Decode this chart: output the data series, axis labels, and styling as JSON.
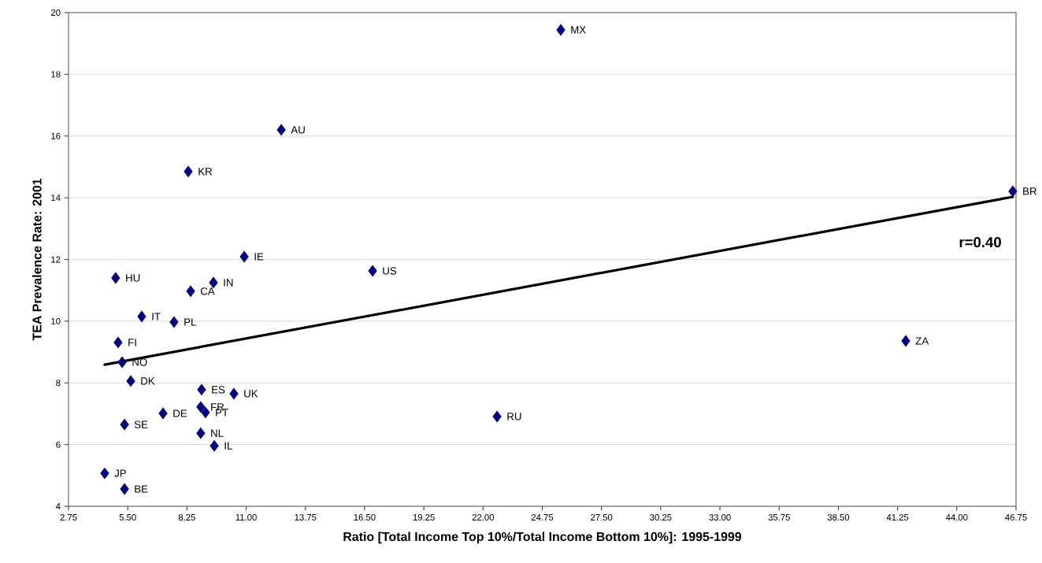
{
  "chart_data": {
    "type": "scatter",
    "xlabel": "Ratio [Total Income Top 10%/Total Income Bottom 10%]: 1995-1999",
    "ylabel": "TEA Prevalence Rate: 2001",
    "series": [
      {
        "marker": "diamond",
        "color": "#000080",
        "x": [
          25.61,
          12.63,
          8.31,
          46.6,
          10.91,
          16.87,
          4.94,
          9.48,
          8.42,
          6.15,
          7.65,
          5.05,
          41.63,
          5.24,
          5.64,
          8.93,
          10.43,
          8.89,
          9.11,
          7.14,
          22.65,
          5.35,
          8.89,
          9.52,
          4.43,
          5.35
        ],
        "values": [
          19.44,
          16.2,
          14.85,
          14.21,
          12.09,
          11.63,
          11.4,
          11.25,
          10.97,
          10.15,
          9.97,
          9.31,
          9.36,
          8.67,
          8.06,
          7.78,
          7.65,
          7.22,
          7.04,
          7.01,
          6.91,
          6.65,
          6.37,
          5.96,
          5.07,
          4.56
        ]
      },
      {
        "type": "line",
        "marker": "none",
        "color": "#000000",
        "x": [
          4.43,
          46.6
        ],
        "values": [
          8.59,
          14.03
        ]
      }
    ],
    "annotations": [
      {
        "text": "MX",
        "x": 25.61,
        "y": 19.44
      },
      {
        "text": "AU",
        "x": 12.63,
        "y": 16.2
      },
      {
        "text": "KR",
        "x": 8.31,
        "y": 14.85
      },
      {
        "text": "BR",
        "x": 46.6,
        "y": 14.21
      },
      {
        "text": "IE",
        "x": 10.91,
        "y": 12.09
      },
      {
        "text": "US",
        "x": 16.87,
        "y": 11.63
      },
      {
        "text": "HU",
        "x": 4.94,
        "y": 11.4
      },
      {
        "text": "IN",
        "x": 9.48,
        "y": 11.25
      },
      {
        "text": "CA",
        "x": 8.42,
        "y": 10.97
      },
      {
        "text": "IT",
        "x": 6.15,
        "y": 10.15
      },
      {
        "text": "PL",
        "x": 7.65,
        "y": 9.97
      },
      {
        "text": "FI",
        "x": 5.05,
        "y": 9.31
      },
      {
        "text": "ZA",
        "x": 41.63,
        "y": 9.36
      },
      {
        "text": "NO",
        "x": 5.24,
        "y": 8.67
      },
      {
        "text": "DK",
        "x": 5.64,
        "y": 8.06
      },
      {
        "text": "ES",
        "x": 8.93,
        "y": 7.78
      },
      {
        "text": "UK",
        "x": 10.43,
        "y": 7.65
      },
      {
        "text": "FR",
        "x": 8.89,
        "y": 7.22
      },
      {
        "text": "PT",
        "x": 9.11,
        "y": 7.04
      },
      {
        "text": "DE",
        "x": 7.14,
        "y": 7.01
      },
      {
        "text": "RU",
        "x": 22.65,
        "y": 6.91
      },
      {
        "text": "SE",
        "x": 5.35,
        "y": 6.65
      },
      {
        "text": "NL",
        "x": 8.89,
        "y": 6.37
      },
      {
        "text": "IL",
        "x": 9.52,
        "y": 5.96
      },
      {
        "text": "JP",
        "x": 4.43,
        "y": 5.07
      },
      {
        "text": "BE",
        "x": 5.35,
        "y": 4.56
      },
      "r=0.40"
    ],
    "xlim": [
      2.75,
      46.75
    ],
    "xticks": [
      2.75,
      {
        "value": 5.5,
        "label": "5.50"
      },
      8.25,
      {
        "value": 11,
        "label": "11.00"
      },
      13.75,
      {
        "value": 16.5,
        "label": "16.50"
      },
      19.25,
      {
        "value": 22,
        "label": "22.00"
      },
      24.75,
      {
        "value": 27.5,
        "label": "27.50"
      },
      30.25,
      {
        "value": 33,
        "label": "33.00"
      },
      35.75,
      {
        "value": 38.5,
        "label": "38.50"
      },
      41.25,
      {
        "value": 44,
        "label": "44.00"
      },
      46.75
    ],
    "ylim": [
      4,
      20
    ],
    "yticks": [
      4,
      6,
      8,
      10,
      12,
      14,
      16,
      18,
      20
    ],
    "grid": "y"
  }
}
